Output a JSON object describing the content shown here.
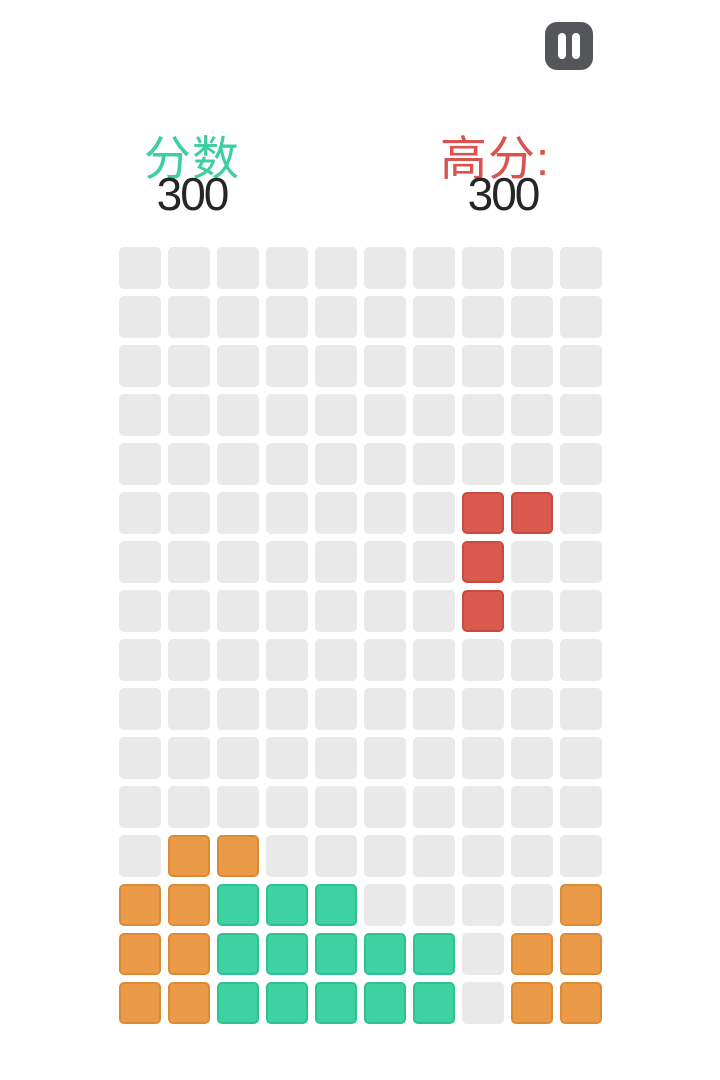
{
  "header": {
    "pause_icon": "pause-icon"
  },
  "scores": {
    "score": {
      "label": "分数",
      "value": "300",
      "label_color": "#3ECF9E",
      "value_color": "#262626"
    },
    "high_score": {
      "label": "高分:",
      "value": "300",
      "label_color": "#D9534F",
      "value_color": "#262626"
    }
  },
  "board": {
    "columns": 10,
    "rows": 16,
    "cells": [
      "..........",
      "..........",
      "..........",
      "..........",
      "..........",
      ".......RR.",
      ".......R..",
      ".......R..",
      "..........",
      "..........",
      "..........",
      "..........",
      ".OO.......",
      "OOTTT....O",
      "OOTTTTT.OO",
      "OOTTTTT.OO"
    ],
    "palette": {
      ".": {
        "name": "empty",
        "fill": "#E9E9E9",
        "border": "#E9E9E9"
      },
      "R": {
        "name": "red-block",
        "fill": "#D95A4E",
        "border": "#C94B40"
      },
      "O": {
        "name": "orange-block",
        "fill": "#EB9A47",
        "border": "#DC8B35"
      },
      "T": {
        "name": "teal-block",
        "fill": "#3ED1A1",
        "border": "#2CC292"
      }
    }
  },
  "colors": {
    "background": "#FFFFFF",
    "pause_button": "#55565A",
    "pause_bars": "#FFFFFF"
  }
}
